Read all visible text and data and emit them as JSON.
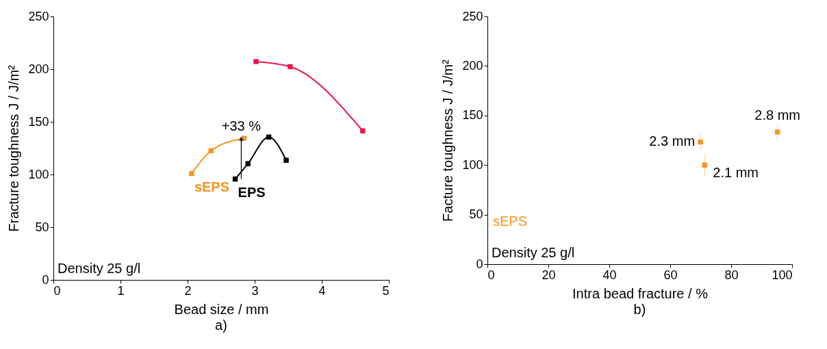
{
  "chart_data": [
    {
      "type": "line",
      "title": "a)",
      "xlabel": "Bead size / mm",
      "ylabel": "Fracture toughness J / J/m²",
      "xlim": [
        0,
        5
      ],
      "xticks": [
        0,
        1,
        2,
        3,
        4,
        5
      ],
      "ylim": [
        0,
        250
      ],
      "yticks": [
        0,
        50,
        100,
        150,
        200,
        250
      ],
      "marker": "square",
      "grid": false,
      "legend": false,
      "series": [
        {
          "name": "sEPS",
          "color": "#f7941d",
          "x": [
            2.06,
            2.35,
            2.84
          ],
          "values": [
            100.9,
            122.6,
            134.3
          ]
        },
        {
          "name": "EPS",
          "color": "#000000",
          "x": [
            2.71,
            2.9,
            3.21,
            3.47
          ],
          "values": [
            95.7,
            110.3,
            135.5,
            113.5
          ]
        },
        {
          "color": "#e8174a",
          "x": [
            3.02,
            3.53,
            4.61
          ],
          "values": [
            207.2,
            202.3,
            141.4
          ]
        }
      ],
      "annotations": [
        {
          "text": "+33 %",
          "x": 2.8,
          "y": 134
        },
        "Density 25 g/l"
      ]
    },
    {
      "type": "scatter",
      "title": "b)",
      "xlabel": "Intra bead fracture / %",
      "ylabel": "Facture toughness J / J/m²",
      "xlim": [
        0,
        100
      ],
      "xticks": [
        0,
        20,
        40,
        60,
        80,
        100
      ],
      "ylim": [
        0,
        250
      ],
      "yticks": [
        0,
        50,
        100,
        150,
        200,
        250
      ],
      "marker": "square",
      "grid": false,
      "legend": "bottom left",
      "series": [
        {
          "name": "sEPS",
          "color": "#f7941d",
          "x": [
            69.9,
            71.3,
            95.2
          ],
          "values": [
            123.3,
            100,
            133.3
          ],
          "errors": [
            8,
            11,
            7
          ]
        }
      ],
      "annotations": [
        {
          "text": "2.3 mm",
          "x": 69.9,
          "y": 123.3
        },
        {
          "text": "2.1 mm",
          "x": 71.3,
          "y": 100
        },
        {
          "text": "2.8 mm",
          "x": 95.2,
          "y": 133.3
        },
        "Density 25 g/l"
      ]
    }
  ]
}
